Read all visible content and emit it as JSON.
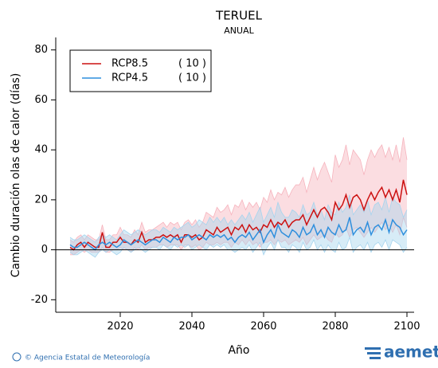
{
  "chart_data": {
    "type": "line",
    "title": "TERUEL",
    "subtitle": "ANUAL",
    "x_label": "Año",
    "y_label": "Cambio duración olas de calor (días)",
    "x": [
      2006,
      2007,
      2008,
      2009,
      2010,
      2011,
      2012,
      2013,
      2014,
      2015,
      2016,
      2017,
      2018,
      2019,
      2020,
      2021,
      2022,
      2023,
      2024,
      2025,
      2026,
      2027,
      2028,
      2029,
      2030,
      2031,
      2032,
      2033,
      2034,
      2035,
      2036,
      2037,
      2038,
      2039,
      2040,
      2041,
      2042,
      2043,
      2044,
      2045,
      2046,
      2047,
      2048,
      2049,
      2050,
      2051,
      2052,
      2053,
      2054,
      2055,
      2056,
      2057,
      2058,
      2059,
      2060,
      2061,
      2062,
      2063,
      2064,
      2065,
      2066,
      2067,
      2068,
      2069,
      2070,
      2071,
      2072,
      2073,
      2074,
      2075,
      2076,
      2077,
      2078,
      2079,
      2080,
      2081,
      2082,
      2083,
      2084,
      2085,
      2086,
      2087,
      2088,
      2089,
      2090,
      2091,
      2092,
      2093,
      2094,
      2095,
      2096,
      2097,
      2098,
      2099,
      2100
    ],
    "series": [
      {
        "name": "RCP8.5",
        "runs_label": "( 10 )",
        "color": "#cc1111",
        "band_color": "#f6b3bd",
        "values": [
          1,
          0,
          2,
          3,
          1,
          3,
          2,
          1,
          1,
          7,
          1,
          1,
          3,
          3,
          5,
          3,
          3,
          2,
          4,
          3,
          7,
          3,
          4,
          4,
          5,
          5,
          6,
          5,
          6,
          5,
          6,
          3,
          6,
          6,
          5,
          6,
          4,
          5,
          8,
          7,
          6,
          9,
          7,
          8,
          9,
          6,
          9,
          8,
          10,
          7,
          10,
          8,
          9,
          7,
          10,
          9,
          12,
          9,
          11,
          10,
          12,
          9,
          11,
          12,
          12,
          14,
          10,
          13,
          16,
          13,
          16,
          17,
          15,
          12,
          19,
          16,
          18,
          22,
          17,
          21,
          22,
          20,
          16,
          20,
          23,
          20,
          23,
          25,
          21,
          24,
          20,
          24,
          19,
          28,
          22
        ],
        "low": [
          -2,
          -2,
          -1,
          0,
          -1,
          0,
          -1,
          -1,
          -1,
          1,
          -1,
          -1,
          0,
          0,
          1,
          0,
          0,
          -1,
          1,
          0,
          2,
          0,
          1,
          1,
          1,
          2,
          2,
          1,
          2,
          2,
          2,
          0,
          2,
          2,
          1,
          2,
          0,
          1,
          3,
          2,
          2,
          3,
          2,
          3,
          3,
          1,
          3,
          2,
          4,
          2,
          4,
          2,
          3,
          1,
          3,
          3,
          4,
          2,
          4,
          3,
          4,
          2,
          3,
          4,
          3,
          5,
          2,
          4,
          6,
          4,
          5,
          6,
          4,
          3,
          7,
          5,
          6,
          9,
          5,
          8,
          9,
          7,
          5,
          7,
          9,
          7,
          9,
          11,
          8,
          10,
          7,
          10,
          6,
          13,
          9
        ],
        "high": [
          4,
          3,
          5,
          6,
          4,
          6,
          5,
          4,
          4,
          10,
          4,
          4,
          6,
          6,
          9,
          6,
          6,
          5,
          8,
          6,
          11,
          7,
          8,
          8,
          9,
          10,
          11,
          9,
          11,
          10,
          11,
          8,
          11,
          12,
          10,
          12,
          9,
          11,
          15,
          14,
          13,
          17,
          15,
          16,
          18,
          14,
          18,
          17,
          20,
          16,
          19,
          17,
          19,
          16,
          21,
          19,
          24,
          20,
          23,
          22,
          25,
          21,
          24,
          26,
          26,
          29,
          23,
          28,
          33,
          28,
          32,
          35,
          31,
          27,
          38,
          33,
          36,
          42,
          34,
          40,
          38,
          36,
          30,
          36,
          40,
          37,
          40,
          42,
          37,
          41,
          36,
          42,
          35,
          45,
          36
        ]
      },
      {
        "name": "RCP4.5",
        "runs_label": "( 10 )",
        "color": "#2f8fdd",
        "band_color": "#a6d4ee",
        "values": [
          2,
          1,
          1,
          2,
          3,
          2,
          1,
          0,
          2,
          3,
          2,
          3,
          2,
          1,
          2,
          4,
          3,
          2,
          3,
          4,
          3,
          2,
          3,
          4,
          4,
          3,
          5,
          4,
          3,
          5,
          4,
          5,
          5,
          6,
          4,
          5,
          6,
          5,
          4,
          6,
          5,
          6,
          5,
          6,
          4,
          5,
          3,
          5,
          6,
          5,
          7,
          4,
          6,
          8,
          3,
          6,
          8,
          5,
          10,
          7,
          6,
          5,
          8,
          7,
          5,
          9,
          6,
          7,
          10,
          6,
          8,
          5,
          9,
          7,
          6,
          10,
          7,
          8,
          13,
          6,
          8,
          9,
          7,
          11,
          6,
          9,
          10,
          8,
          12,
          7,
          12,
          10,
          9,
          6,
          8
        ],
        "low": [
          -1,
          -2,
          -2,
          -1,
          0,
          -1,
          -2,
          -3,
          -1,
          0,
          -1,
          0,
          -1,
          -2,
          -1,
          1,
          0,
          -1,
          0,
          1,
          0,
          -1,
          0,
          1,
          1,
          0,
          2,
          1,
          0,
          2,
          1,
          2,
          1,
          2,
          0,
          1,
          2,
          1,
          0,
          2,
          1,
          2,
          1,
          2,
          0,
          0,
          -1,
          0,
          1,
          0,
          2,
          -1,
          1,
          3,
          -2,
          1,
          3,
          0,
          4,
          1,
          1,
          -1,
          2,
          1,
          -1,
          3,
          0,
          1,
          4,
          0,
          2,
          -1,
          2,
          0,
          -1,
          3,
          0,
          1,
          5,
          -1,
          1,
          2,
          0,
          3,
          -1,
          2,
          3,
          1,
          4,
          0,
          4,
          3,
          2,
          -1,
          1
        ],
        "high": [
          5,
          4,
          4,
          5,
          6,
          5,
          4,
          3,
          5,
          6,
          5,
          6,
          5,
          4,
          6,
          8,
          7,
          6,
          7,
          8,
          7,
          6,
          7,
          8,
          8,
          7,
          9,
          8,
          7,
          9,
          8,
          9,
          10,
          11,
          9,
          10,
          12,
          11,
          10,
          13,
          11,
          13,
          11,
          13,
          10,
          12,
          10,
          12,
          14,
          12,
          15,
          11,
          14,
          17,
          11,
          14,
          17,
          13,
          19,
          15,
          13,
          13,
          16,
          15,
          13,
          18,
          14,
          15,
          19,
          14,
          16,
          12,
          18,
          15,
          14,
          19,
          15,
          17,
          22,
          14,
          16,
          18,
          15,
          20,
          14,
          18,
          19,
          16,
          21,
          15,
          21,
          19,
          18,
          13,
          16
        ]
      }
    ],
    "xlim": [
      2002,
      2102
    ],
    "ylim": [
      -25,
      85
    ],
    "xticks": [
      2020,
      2040,
      2060,
      2080,
      2100
    ],
    "yticks": [
      -20,
      0,
      20,
      40,
      60,
      80
    ],
    "zero_line": true,
    "legend": "upper left"
  },
  "footer": {
    "credit": "© Agencia Estatal de Meteorología",
    "logo": "aemet"
  }
}
